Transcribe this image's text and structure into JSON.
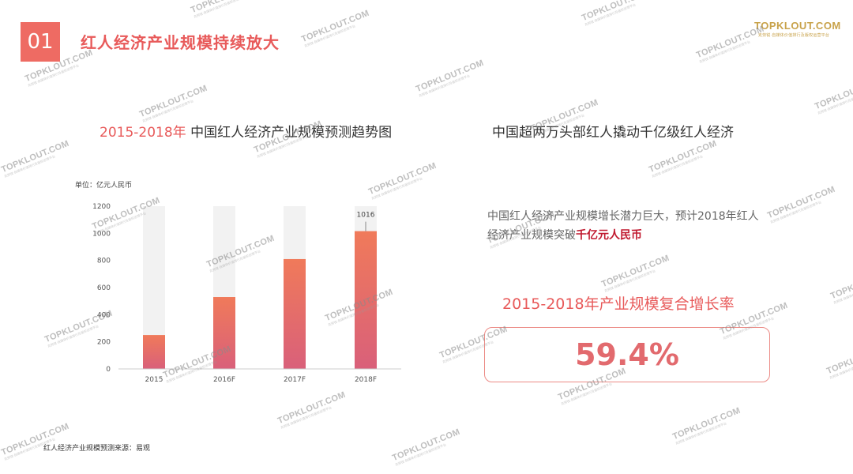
{
  "header": {
    "section_number": "01",
    "title": "红人经济产业规模持续放大"
  },
  "logo": {
    "main": "TOPKLOUT.COM",
    "sub": "克劳锐·自媒体价值排行及版权运营平台"
  },
  "watermark": {
    "text": "TOPKLOUT.COM",
    "sub": "克劳锐·自媒体价值排行及版权运营平台"
  },
  "chart": {
    "title_highlight": "2015-2018年",
    "title_rest": " 中国红人经济产业规模预测趋势图",
    "unit": "单位：亿元人民币",
    "source": "红人经济产业规模预测来源：易观"
  },
  "chart_data": {
    "type": "bar",
    "categories": [
      "2015",
      "2016F",
      "2017F",
      "2018F"
    ],
    "values": [
      250,
      530,
      810,
      1016
    ],
    "background_max": 1200,
    "data_labels": [
      "",
      "",
      "",
      "1016"
    ],
    "ylim": [
      0,
      1200
    ],
    "yticks": [
      "0",
      "200",
      "400",
      "600",
      "800",
      "1000",
      "1200"
    ],
    "colors": {
      "bar_top": "#f07a5a",
      "bar_bottom": "#d9607a",
      "track": "#f2f2f2"
    }
  },
  "right": {
    "title": "中国超两万头部红人撬动千亿级红人经济",
    "desc_normal": "中国红人经济产业规模增长潜力巨大，预计2018年红人经济产业规模突破",
    "desc_bold": "千亿元人民币",
    "cagr_label": "2015-2018年产业规模复合增长率",
    "cagr_value": "59.4%"
  }
}
